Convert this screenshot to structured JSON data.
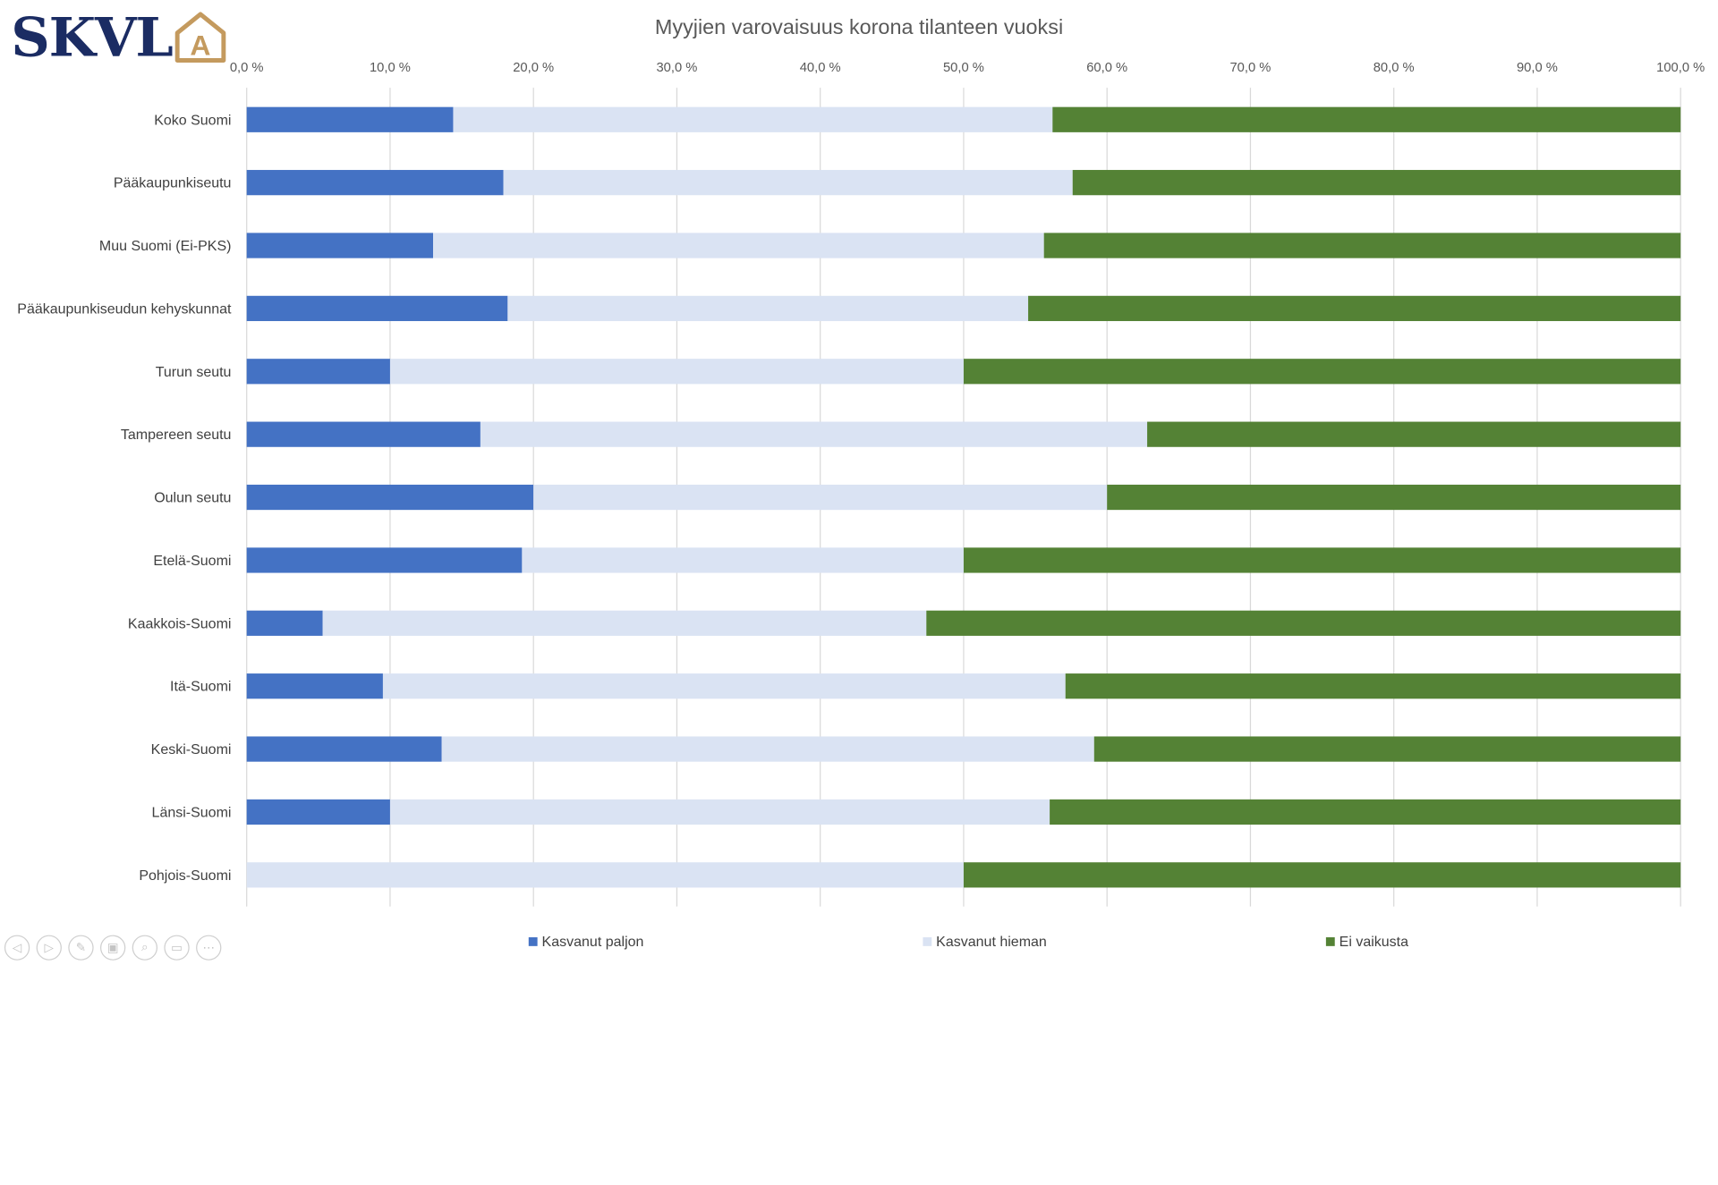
{
  "logo": {
    "text": "SKVL",
    "mark_letter": "A",
    "text_color": "#1b2c63",
    "mark_color": "#c49a5e"
  },
  "nav": {
    "buttons": [
      {
        "name": "previous-slide-button",
        "icon": "◁"
      },
      {
        "name": "next-slide-button",
        "icon": "▷"
      },
      {
        "name": "pen-tool-button",
        "icon": "✎"
      },
      {
        "name": "slides-overview-button",
        "icon": "▣"
      },
      {
        "name": "zoom-button",
        "icon": "⌕"
      },
      {
        "name": "screen-button",
        "icon": "▭"
      },
      {
        "name": "more-options-button",
        "icon": "⋯"
      }
    ]
  },
  "chart_data": {
    "type": "bar",
    "orientation": "horizontal",
    "stacked": "percent",
    "title": "Myyjien varovaisuus korona tilanteen vuoksi",
    "xlim": [
      0,
      100
    ],
    "x_ticks": [
      "0,0 %",
      "10,0 %",
      "20,0 %",
      "30,0 %",
      "40,0 %",
      "50,0 %",
      "60,0 %",
      "70,0 %",
      "80,0 %",
      "90,0 %",
      "100,0 %"
    ],
    "x_axis_position": "top",
    "grid": true,
    "legend_position": "bottom",
    "categories": [
      "Koko Suomi",
      "Pääkaupunkiseutu",
      "Muu Suomi (Ei-PKS)",
      "Pääkaupunkiseudun kehyskunnat",
      "Turun seutu",
      "Tampereen seutu",
      "Oulun seutu",
      "Etelä-Suomi",
      "Kaakkois-Suomi",
      "Itä-Suomi",
      "Keski-Suomi",
      "Länsi-Suomi",
      "Pohjois-Suomi"
    ],
    "series": [
      {
        "name": "Kasvanut paljon",
        "color": "#4472c4",
        "values": [
          14.4,
          17.9,
          13.0,
          18.2,
          10.0,
          16.3,
          20.0,
          19.2,
          5.3,
          9.5,
          13.6,
          10.0,
          0.0
        ]
      },
      {
        "name": "Kasvanut hieman",
        "color": "#dae3f3",
        "values": [
          41.8,
          39.7,
          42.6,
          36.3,
          40.0,
          46.5,
          40.0,
          30.8,
          42.1,
          47.6,
          45.5,
          46.0,
          50.0
        ]
      },
      {
        "name": "Ei vaikusta",
        "color": "#548235",
        "values": [
          43.8,
          42.4,
          44.4,
          45.5,
          50.0,
          37.2,
          40.0,
          50.0,
          52.6,
          42.9,
          40.9,
          44.0,
          50.0
        ]
      }
    ]
  }
}
